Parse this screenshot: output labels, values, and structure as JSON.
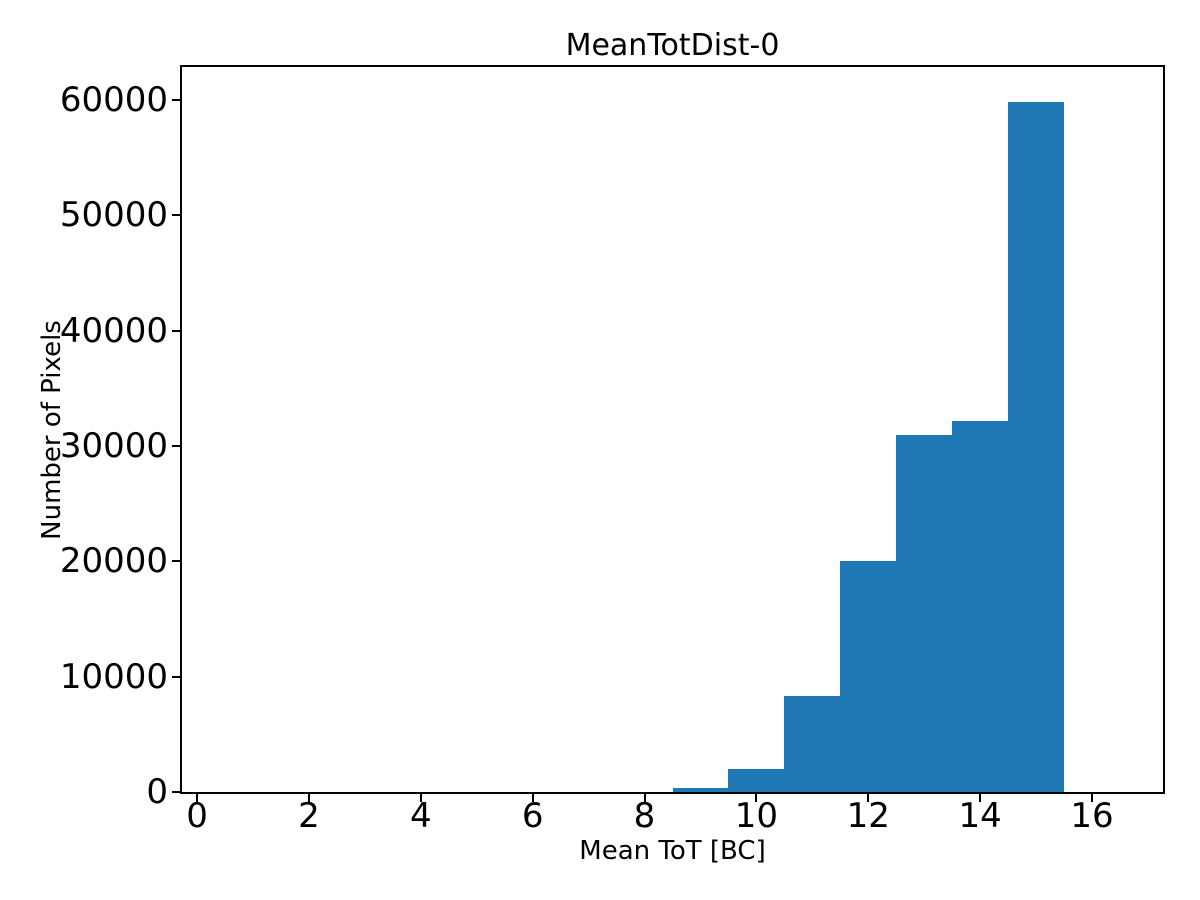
{
  "chart_data": {
    "type": "bar",
    "subtype": "histogram",
    "title": "MeanTotDist-0",
    "xlabel": "Mean ToT [BC]",
    "ylabel": "Number of Pixels",
    "bin_edges": [
      8.5,
      9.5,
      10.5,
      11.5,
      12.5,
      13.5,
      14.5,
      15.5
    ],
    "values": [
      350,
      2000,
      8300,
      20000,
      31000,
      32200,
      59800
    ],
    "xticks": [
      0,
      2,
      4,
      6,
      8,
      10,
      12,
      14,
      16
    ],
    "yticks": [
      0,
      10000,
      20000,
      30000,
      40000,
      50000,
      60000
    ],
    "xlim": [
      -0.27,
      17.27
    ],
    "ylim": [
      0,
      62860
    ],
    "grid": false,
    "legend_position": "none",
    "bar_color": "#1f77b4",
    "axis_color": "#000000",
    "text_color": "#000000",
    "background_color": "#ffffff"
  }
}
